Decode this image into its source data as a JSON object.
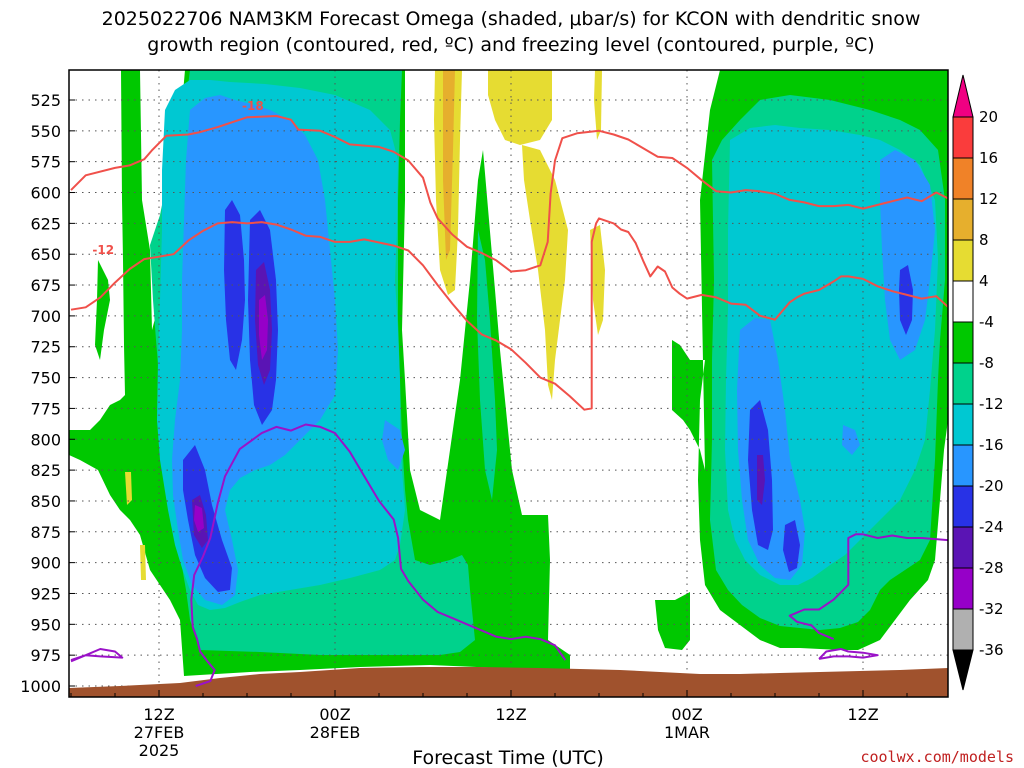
{
  "chart_data": {
    "type": "heatmap",
    "title_lines": [
      "2025022706 NAM3KM Forecast Omega (shaded, μbar/s) for KCON with dendritic snow",
      "growth region (contoured, red, ºC) and freezing level (contoured, purple, ºC)"
    ],
    "xlabel": "Forecast Time (UTC)",
    "x_ticks": [
      {
        "hour": 6,
        "lines": [
          "12Z",
          "27FEB",
          "2025"
        ]
      },
      {
        "hour": 18,
        "lines": [
          "00Z",
          "28FEB"
        ]
      },
      {
        "hour": 30,
        "lines": [
          "12Z"
        ]
      },
      {
        "hour": 42,
        "lines": [
          "00Z",
          "1MAR"
        ]
      },
      {
        "hour": 54,
        "lines": [
          "12Z"
        ]
      }
    ],
    "xlim": [
      0,
      60
    ],
    "y_ticks": [
      525,
      550,
      575,
      600,
      625,
      650,
      675,
      700,
      725,
      750,
      775,
      800,
      825,
      850,
      875,
      900,
      925,
      950,
      975,
      1000
    ],
    "ylim": [
      508,
      1010
    ],
    "grid": true,
    "colorbar": {
      "levels": [
        -36,
        -32,
        -28,
        -24,
        -20,
        -16,
        -12,
        -8,
        -4,
        4,
        8,
        12,
        16,
        20
      ],
      "colors": [
        "#000000",
        "#b0b0b0",
        "#9600c8",
        "#5a14b4",
        "#2832e6",
        "#2896ff",
        "#00c8d2",
        "#00d28c",
        "#00c800",
        "#ffffff",
        "#e6dc32",
        "#e6af2d",
        "#f08228",
        "#fa3c3c",
        "#f00082"
      ],
      "labels": [
        "20",
        "16",
        "12",
        "8",
        "4",
        "-4",
        "-8",
        "-12",
        "-16",
        "-20",
        "-24",
        "-28",
        "-32",
        "-36"
      ]
    },
    "red_contours": [
      {
        "label": "-18",
        "points": [
          [
            0,
            598
          ],
          [
            1,
            586
          ],
          [
            3,
            580
          ],
          [
            4,
            578
          ],
          [
            5,
            573
          ],
          [
            5.5,
            566
          ],
          [
            6.5,
            554
          ],
          [
            8,
            553
          ],
          [
            8.8,
            551
          ],
          [
            10,
            547
          ],
          [
            11,
            543
          ],
          [
            12,
            539
          ],
          [
            14,
            538
          ],
          [
            15,
            541
          ],
          [
            15.5,
            549
          ],
          [
            17,
            550
          ],
          [
            18,
            555
          ],
          [
            19,
            561
          ],
          [
            21,
            563
          ],
          [
            22,
            567
          ],
          [
            23,
            574
          ],
          [
            24,
            588
          ],
          [
            24.5,
            608
          ],
          [
            25,
            621
          ],
          [
            26,
            634
          ],
          [
            27,
            644
          ],
          [
            28,
            649
          ],
          [
            29,
            655
          ],
          [
            30,
            664
          ],
          [
            31,
            663
          ],
          [
            32,
            659
          ],
          [
            32.5,
            640
          ],
          [
            32.7,
            601
          ],
          [
            33,
            574
          ],
          [
            33.5,
            556
          ],
          [
            34.5,
            552
          ],
          [
            36,
            550
          ],
          [
            37,
            553
          ],
          [
            38,
            557
          ],
          [
            39,
            564
          ],
          [
            40,
            571
          ],
          [
            41,
            572
          ],
          [
            42,
            580
          ],
          [
            43,
            590
          ],
          [
            44,
            599
          ],
          [
            45,
            600
          ],
          [
            46,
            598
          ],
          [
            47,
            599
          ],
          [
            48,
            601
          ],
          [
            49,
            606
          ],
          [
            50,
            608
          ],
          [
            51,
            611
          ],
          [
            52,
            611
          ],
          [
            53,
            610
          ],
          [
            54,
            613
          ],
          [
            55,
            610
          ],
          [
            56,
            607
          ],
          [
            57,
            604
          ],
          [
            58,
            607
          ],
          [
            59,
            600
          ],
          [
            60,
            606
          ]
        ],
        "label_at": [
          12.4,
          533
        ]
      },
      {
        "label": "-12",
        "points": [
          [
            0,
            695
          ],
          [
            1,
            693
          ],
          [
            2,
            685
          ],
          [
            3,
            673
          ],
          [
            4,
            662
          ],
          [
            5,
            654
          ],
          [
            6,
            652
          ],
          [
            6.5,
            651
          ],
          [
            7,
            650
          ],
          [
            8,
            639
          ],
          [
            9,
            631
          ],
          [
            10,
            625
          ],
          [
            11,
            624
          ],
          [
            12,
            625
          ],
          [
            13,
            624
          ],
          [
            14,
            626
          ],
          [
            15,
            630
          ],
          [
            16,
            635
          ],
          [
            17,
            636
          ],
          [
            18,
            640
          ],
          [
            19,
            640
          ],
          [
            20,
            638
          ],
          [
            22,
            643
          ],
          [
            23,
            647
          ],
          [
            24,
            659
          ],
          [
            25,
            675
          ],
          [
            26,
            690
          ],
          [
            27,
            704
          ],
          [
            28,
            715
          ],
          [
            29,
            720
          ],
          [
            30,
            727
          ],
          [
            31,
            738
          ],
          [
            32,
            750
          ],
          [
            33,
            755
          ],
          [
            34,
            765
          ],
          [
            35,
            776
          ],
          [
            35.5,
            775
          ],
          [
            35.5,
            763
          ],
          [
            35.5,
            705
          ],
          [
            35.5,
            640
          ],
          [
            35.8,
            625
          ],
          [
            36,
            621
          ],
          [
            37,
            625
          ],
          [
            37.5,
            630
          ],
          [
            38,
            632
          ],
          [
            38.5,
            641
          ],
          [
            39,
            655
          ],
          [
            39.5,
            668
          ],
          [
            40,
            660
          ],
          [
            40.5,
            664
          ],
          [
            41,
            677
          ],
          [
            41.5,
            682
          ],
          [
            42,
            686
          ],
          [
            43,
            683
          ],
          [
            44,
            685
          ],
          [
            45,
            690
          ],
          [
            46,
            691
          ],
          [
            47,
            700
          ],
          [
            48,
            703
          ],
          [
            49,
            689
          ],
          [
            49.5,
            685
          ],
          [
            50,
            682
          ],
          [
            51,
            679
          ],
          [
            52,
            672
          ],
          [
            52.5,
            668
          ],
          [
            53,
            668
          ],
          [
            54,
            670
          ],
          [
            55,
            676
          ],
          [
            56,
            680
          ],
          [
            57,
            683
          ],
          [
            58,
            686
          ],
          [
            59,
            684
          ],
          [
            60,
            695
          ]
        ],
        "label_at": [
          2.2,
          650
        ]
      }
    ],
    "purple_contours": [
      {
        "points": [
          [
            0,
            979
          ],
          [
            1,
            975
          ],
          [
            2,
            970
          ],
          [
            3,
            972
          ],
          [
            3.5,
            977
          ],
          [
            2,
            976
          ],
          [
            1,
            975
          ],
          [
            0,
            980
          ]
        ]
      },
      {
        "points": [
          [
            8.5,
            1000
          ],
          [
            9.5,
            996
          ],
          [
            9.8,
            987
          ],
          [
            9.3,
            980
          ],
          [
            8.8,
            972
          ],
          [
            8.6,
            962
          ],
          [
            8.3,
            952
          ],
          [
            8.2,
            930
          ],
          [
            8.4,
            910
          ],
          [
            9,
            895
          ],
          [
            9.5,
            880
          ],
          [
            10,
            852
          ],
          [
            10.5,
            830
          ],
          [
            11.5,
            808
          ],
          [
            13,
            795
          ],
          [
            14,
            790
          ],
          [
            15,
            793
          ],
          [
            16,
            788
          ],
          [
            17,
            790
          ],
          [
            18,
            795
          ],
          [
            19,
            810
          ],
          [
            20,
            830
          ],
          [
            21,
            850
          ],
          [
            22,
            865
          ],
          [
            22.3,
            880
          ],
          [
            22.5,
            905
          ],
          [
            23,
            915
          ],
          [
            24,
            930
          ],
          [
            25,
            940
          ],
          [
            26,
            945
          ],
          [
            27,
            950
          ],
          [
            28,
            955
          ],
          [
            29,
            960
          ],
          [
            30,
            962
          ],
          [
            31,
            960
          ],
          [
            32,
            962
          ],
          [
            33,
            967
          ],
          [
            33.7,
            979
          ]
        ]
      },
      {
        "points": [
          [
            51,
            978
          ],
          [
            51.5,
            972
          ],
          [
            52.5,
            970
          ],
          [
            53,
            972
          ],
          [
            54,
            973
          ],
          [
            55,
            975
          ],
          [
            54,
            977
          ],
          [
            53,
            976
          ],
          [
            52,
            976
          ],
          [
            51,
            978
          ]
        ]
      },
      {
        "points": [
          [
            60,
            882
          ],
          [
            58,
            880
          ],
          [
            57,
            880
          ],
          [
            56,
            878
          ],
          [
            55,
            880
          ],
          [
            54,
            877
          ],
          [
            53.5,
            877
          ],
          [
            53,
            880
          ],
          [
            53,
            890
          ],
          [
            53,
            905
          ],
          [
            53,
            918
          ],
          [
            52,
            930
          ],
          [
            51,
            938
          ],
          [
            50,
            938
          ],
          [
            49,
            943
          ],
          [
            49.5,
            948
          ],
          [
            50.5,
            951
          ],
          [
            51,
            957
          ],
          [
            52,
            962
          ]
        ]
      }
    ]
  },
  "credit": "coolwx.com/models"
}
